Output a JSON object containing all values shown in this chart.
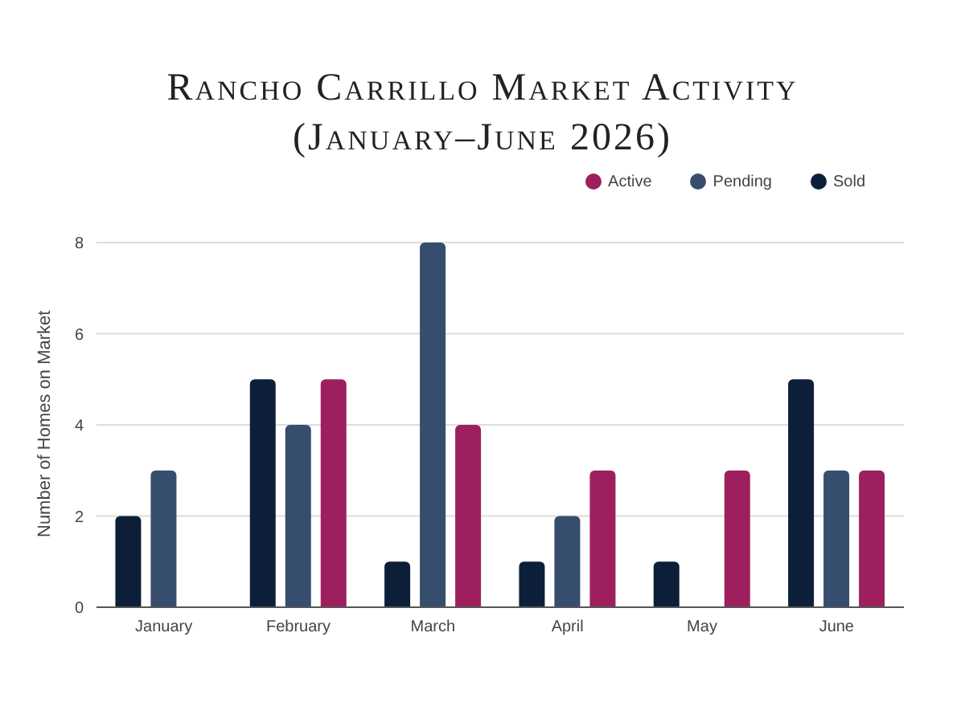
{
  "chart_data": {
    "type": "bar",
    "title": "Rancho Carrillo Market Activity",
    "subtitle": "(January–June 2026)",
    "ylabel": "Number of Homes on Market",
    "categories": [
      "January",
      "February",
      "March",
      "April",
      "May",
      "June"
    ],
    "series": [
      {
        "name": "Sold",
        "color": "#0d1f38",
        "values": [
          2,
          5,
          1,
          1,
          1,
          5
        ]
      },
      {
        "name": "Pending",
        "color": "#364d6e",
        "values": [
          3,
          4,
          8,
          2,
          0,
          3
        ]
      },
      {
        "name": "Active",
        "color": "#9e1f5e",
        "values": [
          0,
          5,
          4,
          3,
          3,
          3
        ]
      }
    ],
    "ylim": [
      0,
      8
    ],
    "yticks": [
      0,
      2,
      4,
      6,
      8
    ],
    "grid": "y",
    "legend": "top right"
  }
}
